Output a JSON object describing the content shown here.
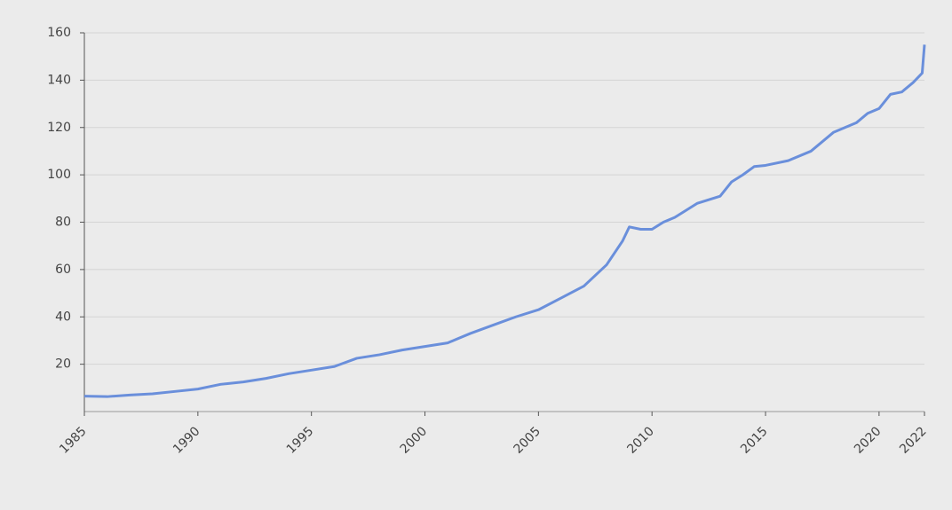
{
  "chart_data": {
    "type": "line",
    "x": [
      1985,
      1986,
      1987,
      1988,
      1989,
      1990,
      1991,
      1992,
      1993,
      1994,
      1995,
      1996,
      1997,
      1998,
      1999,
      2000,
      2001,
      2002,
      2003,
      2004,
      2005,
      2006,
      2007,
      2008,
      2008.7,
      2009,
      2009.5,
      2010,
      2010.5,
      2011,
      2012,
      2013,
      2013.5,
      2014,
      2014.5,
      2015,
      2016,
      2017,
      2018,
      2019,
      2019.5,
      2020,
      2020.5,
      2021,
      2021.5,
      2021.9,
      2022
    ],
    "series": [
      {
        "color": "#6a8fdb",
        "values": [
          6.5,
          6.3,
          7,
          7.5,
          8.5,
          9.5,
          11.5,
          12.5,
          14,
          16,
          17.5,
          19,
          22.5,
          24,
          26,
          27.5,
          29,
          33,
          36.5,
          40,
          43,
          48,
          53,
          62,
          72,
          78,
          77,
          77,
          80,
          82,
          88,
          91,
          97,
          100,
          103.5,
          104,
          106,
          110,
          118,
          122,
          126,
          128,
          134,
          135,
          139,
          143,
          155
        ]
      }
    ],
    "xlim": [
      1985,
      2022
    ],
    "xticks": [
      1985,
      1990,
      1995,
      2000,
      2005,
      2010,
      2015,
      2020,
      2022
    ],
    "ylim": [
      0,
      160
    ],
    "yticks": [
      20,
      40,
      60,
      80,
      100,
      120,
      140,
      160
    ],
    "grid": true
  }
}
